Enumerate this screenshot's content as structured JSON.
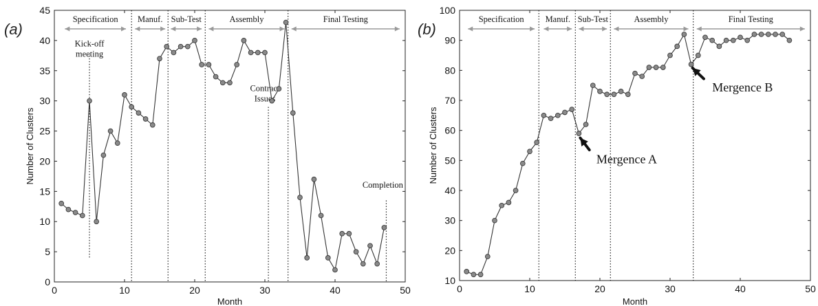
{
  "chart_data": [
    {
      "panel_label": "(a)",
      "type": "line",
      "xlabel": "Month",
      "ylabel": "Number of Clusters",
      "xlim": [
        0,
        50
      ],
      "ylim": [
        0,
        45
      ],
      "x_ticks": [
        0,
        10,
        20,
        30,
        40,
        50
      ],
      "y_ticks": [
        0,
        5,
        10,
        15,
        20,
        25,
        30,
        35,
        40,
        45
      ],
      "grid": false,
      "series": [
        {
          "x": [
            1,
            2,
            3,
            4,
            5,
            6,
            7,
            8,
            9,
            10,
            11,
            12,
            13,
            14,
            15,
            16,
            17,
            18,
            19,
            20,
            21,
            22,
            23,
            24,
            25,
            26,
            27,
            28,
            29,
            30,
            31,
            32,
            33,
            34,
            35,
            36,
            37,
            38,
            39,
            40,
            41,
            42,
            43,
            44,
            45,
            46,
            47
          ],
          "y": [
            13,
            12,
            11.5,
            11,
            30,
            10,
            21,
            25,
            23,
            31,
            29,
            28,
            27,
            26,
            37,
            39,
            38,
            39,
            39,
            40,
            36,
            36,
            34,
            33,
            33,
            36,
            40,
            38,
            38,
            38,
            30,
            32,
            43,
            28,
            14,
            4,
            17,
            11,
            4,
            2,
            8,
            8,
            5,
            3,
            6,
            3,
            9
          ]
        }
      ],
      "phase_boundaries": [
        11,
        16.2,
        21.5,
        33.3
      ],
      "phases": [
        {
          "label": "Specification",
          "start": 1.5,
          "end": 10.2
        },
        {
          "label": "Manuf.",
          "start": 11.5,
          "end": 15.8
        },
        {
          "label": "Sub-Test",
          "start": 16.6,
          "end": 21
        },
        {
          "label": "Assembly",
          "start": 22,
          "end": 32.8
        },
        {
          "label": "Final Testing",
          "start": 33.8,
          "end": 49.2
        }
      ],
      "annotations": [
        {
          "lines": [
            "Kick-off",
            "meeting"
          ],
          "x": 5,
          "y_top": 37.5,
          "y_bottom": 4,
          "text_x": 5,
          "text_y": 39
        },
        {
          "lines": [
            "Contract",
            "Issues"
          ],
          "x": 30.5,
          "y_top": 29,
          "y_bottom": 0,
          "text_x": 30,
          "text_y": 31.6
        },
        {
          "lines": [
            "Completion"
          ],
          "x": 47.3,
          "y_top": 13.5,
          "y_bottom": 0,
          "text_x": 46.8,
          "text_y": 15.6
        }
      ]
    },
    {
      "panel_label": "(b)",
      "type": "line",
      "xlabel": "Month",
      "ylabel": "Number of Clusters",
      "xlim": [
        0,
        50
      ],
      "ylim": [
        10,
        100
      ],
      "x_ticks": [
        0,
        10,
        20,
        30,
        40,
        50
      ],
      "y_ticks": [
        10,
        20,
        30,
        40,
        50,
        60,
        70,
        80,
        90,
        100
      ],
      "grid": false,
      "series": [
        {
          "x": [
            1,
            2,
            3,
            4,
            5,
            6,
            7,
            8,
            9,
            10,
            11,
            12,
            13,
            14,
            15,
            16,
            17,
            18,
            19,
            20,
            21,
            22,
            23,
            24,
            25,
            26,
            27,
            28,
            29,
            30,
            31,
            32,
            33,
            34,
            35,
            36,
            37,
            38,
            39,
            40,
            41,
            42,
            43,
            44,
            45,
            46,
            47
          ],
          "y": [
            13,
            12,
            12,
            18,
            30,
            35,
            36,
            40,
            49,
            53,
            56,
            65,
            64,
            65,
            66,
            67,
            59,
            62,
            75,
            73,
            72,
            72,
            73,
            72,
            79,
            78,
            81,
            81,
            81,
            85,
            88,
            92,
            82,
            85,
            91,
            90,
            88,
            90,
            90,
            91,
            90,
            92,
            92,
            92,
            92,
            92,
            90
          ]
        }
      ],
      "phase_boundaries": [
        11.3,
        16.5,
        21.5,
        33.3
      ],
      "phases": [
        {
          "label": "Specification",
          "start": 1.2,
          "end": 10.7
        },
        {
          "label": "Manuf.",
          "start": 12,
          "end": 16
        },
        {
          "label": "Sub-Test",
          "start": 17,
          "end": 21
        },
        {
          "label": "Assembly",
          "start": 22,
          "end": 32.6
        },
        {
          "label": "Final Testing",
          "start": 33.8,
          "end": 49.2
        }
      ],
      "annotations": [
        {
          "text": "Mergence A",
          "point_x": 17.2,
          "point_y": 57.5,
          "tail_x": 18.5,
          "tail_y": 53.5,
          "text_x": 19.5,
          "text_y": 49
        },
        {
          "text": "Mergence B",
          "point_x": 33.2,
          "point_y": 80.8,
          "tail_x": 34.8,
          "tail_y": 77.2,
          "text_x": 36,
          "text_y": 73
        }
      ]
    }
  ]
}
